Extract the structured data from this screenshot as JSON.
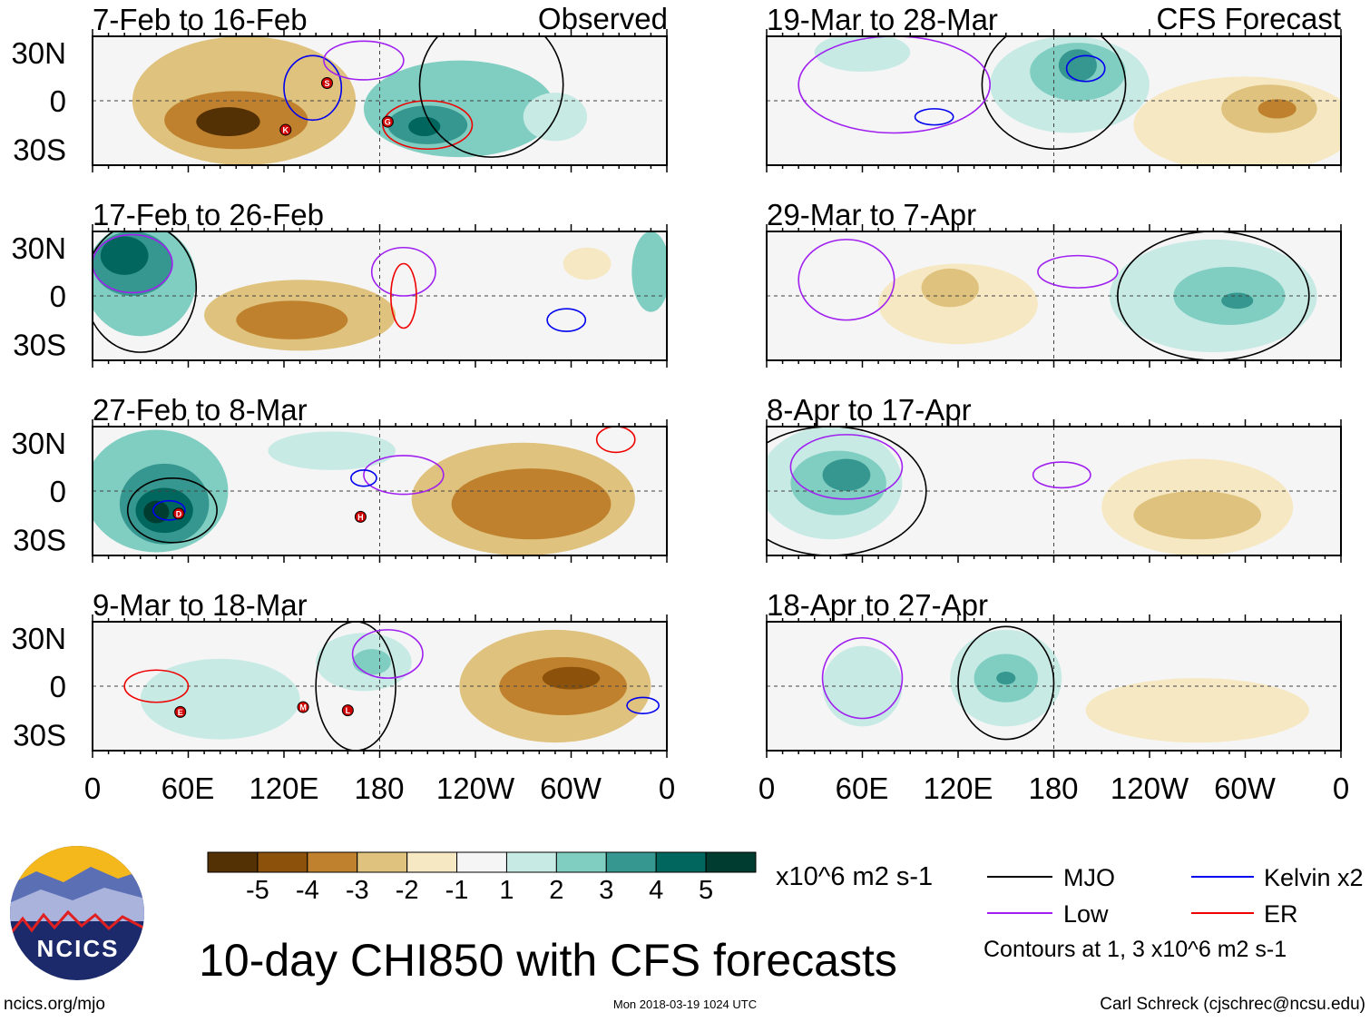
{
  "header": {
    "observed_label": "Observed",
    "forecast_label": "CFS Forecast"
  },
  "lat_labels": [
    "30N",
    "0",
    "30S"
  ],
  "lon_labels": [
    "0",
    "60E",
    "120E",
    "180",
    "120W",
    "60W",
    "0"
  ],
  "title": "10-day CHI850 with CFS forecasts",
  "units": "x10^6 m2 s-1",
  "colorbar": {
    "labels": [
      "-5",
      "-4",
      "-3",
      "-2",
      "-1",
      "1",
      "2",
      "3",
      "4",
      "5"
    ],
    "colors": [
      "#543005",
      "#8c510a",
      "#bf812d",
      "#dfc27d",
      "#f6e8c3",
      "#f5f5f5",
      "#c7eae5",
      "#80cdc1",
      "#35978f",
      "#01665e",
      "#003c30"
    ]
  },
  "legend": {
    "items": [
      {
        "label": "MJO",
        "color": "#000000"
      },
      {
        "label": "Kelvin x2",
        "color": "#0000ee"
      },
      {
        "label": "Low",
        "color": "#a020f0"
      },
      {
        "label": "ER",
        "color": "#ee0000"
      }
    ],
    "note": "Contours at 1, 3 x10^6 m2 s-1"
  },
  "footer": {
    "left": "ncics.org/mjo",
    "center": "Mon 2018-03-19 1024 UTC",
    "right": "Carl Schreck (cjschrec@ncsu.edu)"
  },
  "logo": {
    "text": "NCICS"
  },
  "chart_data": {
    "type": "heatmap",
    "title": "10-day CHI850 with CFS forecasts",
    "lon_range": [
      0,
      360
    ],
    "lat_range": [
      -40,
      40
    ],
    "panels": [
      {
        "title": "7-Feb to 16-Feb",
        "kind": "observed",
        "blobs": [
          {
            "lon": 95,
            "lat": 0,
            "rlon": 70,
            "rlat": 40,
            "v": -2
          },
          {
            "lon": 90,
            "lat": -12,
            "rlon": 45,
            "rlat": 18,
            "v": -3
          },
          {
            "lon": 85,
            "lat": -13,
            "rlon": 20,
            "rlat": 9,
            "v": -5
          },
          {
            "lon": 230,
            "lat": -5,
            "rlon": 60,
            "rlat": 30,
            "v": 2
          },
          {
            "lon": 210,
            "lat": -15,
            "rlon": 25,
            "rlat": 12,
            "v": 3
          },
          {
            "lon": 208,
            "lat": -16,
            "rlon": 10,
            "rlat": 6,
            "v": 4
          },
          {
            "lon": 290,
            "lat": -10,
            "rlon": 20,
            "rlat": 15,
            "v": 1
          }
        ],
        "contours": [
          {
            "t": "ER",
            "lon": 210,
            "lat": -15,
            "rlon": 28,
            "rlat": 15
          },
          {
            "t": "Kelvin",
            "lon": 138,
            "lat": 8,
            "rlon": 18,
            "rlat": 20
          },
          {
            "t": "Low",
            "lon": 170,
            "lat": 25,
            "rlon": 25,
            "rlat": 12
          },
          {
            "t": "MJO",
            "lon": 250,
            "lat": 10,
            "rlon": 45,
            "rlat": 45
          }
        ],
        "storms": [
          {
            "label": "K",
            "lon": 121,
            "lat": -18
          },
          {
            "label": "S",
            "lon": 147,
            "lat": 11
          },
          {
            "label": "G",
            "lon": 185,
            "lat": -13
          }
        ]
      },
      {
        "title": "17-Feb to 26-Feb",
        "kind": "observed",
        "blobs": [
          {
            "lon": 30,
            "lat": 10,
            "rlon": 35,
            "rlat": 35,
            "v": 2
          },
          {
            "lon": 25,
            "lat": 20,
            "rlon": 25,
            "rlat": 20,
            "v": 3
          },
          {
            "lon": 20,
            "lat": 25,
            "rlon": 15,
            "rlat": 12,
            "v": 4
          },
          {
            "lon": 130,
            "lat": -12,
            "rlon": 60,
            "rlat": 22,
            "v": -2
          },
          {
            "lon": 125,
            "lat": -15,
            "rlon": 35,
            "rlat": 12,
            "v": -3
          },
          {
            "lon": 350,
            "lat": 15,
            "rlon": 12,
            "rlat": 25,
            "v": 2
          },
          {
            "lon": 310,
            "lat": 20,
            "rlon": 15,
            "rlat": 10,
            "v": -1
          }
        ],
        "contours": [
          {
            "t": "MJO",
            "lon": 30,
            "lat": 5,
            "rlon": 35,
            "rlat": 40
          },
          {
            "t": "Low",
            "lon": 25,
            "lat": 20,
            "rlon": 25,
            "rlat": 18
          },
          {
            "t": "Low",
            "lon": 195,
            "lat": 15,
            "rlon": 20,
            "rlat": 15
          },
          {
            "t": "ER",
            "lon": 195,
            "lat": 0,
            "rlon": 8,
            "rlat": 20
          },
          {
            "t": "Kelvin",
            "lon": 297,
            "lat": -15,
            "rlon": 12,
            "rlat": 7
          }
        ],
        "storms": []
      },
      {
        "title": "27-Feb to 8-Mar",
        "kind": "observed",
        "blobs": [
          {
            "lon": 40,
            "lat": 0,
            "rlon": 45,
            "rlat": 38,
            "v": 2
          },
          {
            "lon": 45,
            "lat": -8,
            "rlon": 28,
            "rlat": 25,
            "v": 3
          },
          {
            "lon": 45,
            "lat": -12,
            "rlon": 18,
            "rlat": 14,
            "v": 4
          },
          {
            "lon": 40,
            "lat": -13,
            "rlon": 8,
            "rlat": 7,
            "v": 5
          },
          {
            "lon": 270,
            "lat": -5,
            "rlon": 70,
            "rlat": 35,
            "v": -2
          },
          {
            "lon": 275,
            "lat": -8,
            "rlon": 50,
            "rlat": 22,
            "v": -3
          },
          {
            "lon": 150,
            "lat": 25,
            "rlon": 40,
            "rlat": 12,
            "v": 1
          }
        ],
        "contours": [
          {
            "t": "MJO",
            "lon": 50,
            "lat": -12,
            "rlon": 28,
            "rlat": 20
          },
          {
            "t": "Kelvin",
            "lon": 48,
            "lat": -12,
            "rlon": 10,
            "rlat": 6
          },
          {
            "t": "Low",
            "lon": 195,
            "lat": 10,
            "rlon": 25,
            "rlat": 12
          },
          {
            "t": "Kelvin",
            "lon": 170,
            "lat": 8,
            "rlon": 8,
            "rlat": 5
          },
          {
            "t": "ER",
            "lon": 328,
            "lat": 32,
            "rlon": 12,
            "rlat": 8
          }
        ],
        "storms": [
          {
            "label": "D",
            "lon": 54,
            "lat": -14
          },
          {
            "label": "H",
            "lon": 168,
            "lat": -16
          }
        ]
      },
      {
        "title": "9-Mar to 18-Mar",
        "kind": "observed",
        "blobs": [
          {
            "lon": 80,
            "lat": -8,
            "rlon": 50,
            "rlat": 25,
            "v": 1
          },
          {
            "lon": 170,
            "lat": 15,
            "rlon": 30,
            "rlat": 18,
            "v": 1
          },
          {
            "lon": 175,
            "lat": 15,
            "rlon": 12,
            "rlat": 8,
            "v": 2
          },
          {
            "lon": 290,
            "lat": 0,
            "rlon": 60,
            "rlat": 35,
            "v": -2
          },
          {
            "lon": 295,
            "lat": 0,
            "rlon": 40,
            "rlat": 18,
            "v": -3
          },
          {
            "lon": 300,
            "lat": 5,
            "rlon": 18,
            "rlat": 7,
            "v": -4
          }
        ],
        "contours": [
          {
            "t": "MJO",
            "lon": 165,
            "lat": 0,
            "rlon": 25,
            "rlat": 40
          },
          {
            "t": "Low",
            "lon": 185,
            "lat": 20,
            "rlon": 22,
            "rlat": 15
          },
          {
            "t": "ER",
            "lon": 40,
            "lat": 0,
            "rlon": 20,
            "rlat": 10
          },
          {
            "t": "Kelvin",
            "lon": 345,
            "lat": -12,
            "rlon": 10,
            "rlat": 5
          }
        ],
        "storms": [
          {
            "label": "E",
            "lon": 55,
            "lat": -16
          },
          {
            "label": "M",
            "lon": 132,
            "lat": -13
          },
          {
            "label": "L",
            "lon": 160,
            "lat": -15
          }
        ]
      },
      {
        "title": "19-Mar to 28-Mar",
        "kind": "forecast",
        "blobs": [
          {
            "lon": 190,
            "lat": 10,
            "rlon": 50,
            "rlat": 30,
            "v": 1
          },
          {
            "lon": 195,
            "lat": 18,
            "rlon": 30,
            "rlat": 18,
            "v": 2
          },
          {
            "lon": 195,
            "lat": 22,
            "rlon": 12,
            "rlat": 10,
            "v": 3
          },
          {
            "lon": 300,
            "lat": -15,
            "rlon": 70,
            "rlat": 30,
            "v": -1
          },
          {
            "lon": 315,
            "lat": -5,
            "rlon": 30,
            "rlat": 15,
            "v": -2
          },
          {
            "lon": 320,
            "lat": -5,
            "rlon": 12,
            "rlat": 6,
            "v": -3
          },
          {
            "lon": 60,
            "lat": 30,
            "rlon": 30,
            "rlat": 12,
            "v": 1
          }
        ],
        "contours": [
          {
            "t": "MJO",
            "lon": 180,
            "lat": 10,
            "rlon": 45,
            "rlat": 40
          },
          {
            "t": "Kelvin",
            "lon": 200,
            "lat": 20,
            "rlon": 12,
            "rlat": 8
          },
          {
            "t": "Low",
            "lon": 80,
            "lat": 10,
            "rlon": 60,
            "rlat": 30
          },
          {
            "t": "Kelvin",
            "lon": 105,
            "lat": -10,
            "rlon": 12,
            "rlat": 5
          }
        ],
        "storms": []
      },
      {
        "title": "29-Mar to 7-Apr",
        "kind": "forecast",
        "blobs": [
          {
            "lon": 280,
            "lat": 0,
            "rlon": 65,
            "rlat": 35,
            "v": 1
          },
          {
            "lon": 290,
            "lat": 0,
            "rlon": 35,
            "rlat": 18,
            "v": 2
          },
          {
            "lon": 295,
            "lat": -3,
            "rlon": 10,
            "rlat": 5,
            "v": 3
          },
          {
            "lon": 120,
            "lat": -5,
            "rlon": 50,
            "rlat": 25,
            "v": -1
          },
          {
            "lon": 115,
            "lat": 5,
            "rlon": 18,
            "rlat": 12,
            "v": -2
          }
        ],
        "contours": [
          {
            "t": "MJO",
            "lon": 280,
            "lat": 0,
            "rlon": 60,
            "rlat": 40
          },
          {
            "t": "Low",
            "lon": 195,
            "lat": 15,
            "rlon": 25,
            "rlat": 10
          },
          {
            "t": "Low",
            "lon": 50,
            "lat": 10,
            "rlon": 30,
            "rlat": 25
          }
        ],
        "storms": []
      },
      {
        "title": "8-Apr to 17-Apr",
        "kind": "forecast",
        "blobs": [
          {
            "lon": 40,
            "lat": 5,
            "rlon": 45,
            "rlat": 35,
            "v": 1
          },
          {
            "lon": 45,
            "lat": 5,
            "rlon": 30,
            "rlat": 20,
            "v": 2
          },
          {
            "lon": 50,
            "lat": 10,
            "rlon": 15,
            "rlat": 10,
            "v": 3
          },
          {
            "lon": 270,
            "lat": -10,
            "rlon": 60,
            "rlat": 30,
            "v": -1
          },
          {
            "lon": 270,
            "lat": -15,
            "rlon": 40,
            "rlat": 15,
            "v": -2
          }
        ],
        "contours": [
          {
            "t": "MJO",
            "lon": 40,
            "lat": 0,
            "rlon": 60,
            "rlat": 40
          },
          {
            "t": "Low",
            "lon": 50,
            "lat": 15,
            "rlon": 35,
            "rlat": 20
          },
          {
            "t": "Low",
            "lon": 185,
            "lat": 10,
            "rlon": 18,
            "rlat": 8
          }
        ],
        "storms": []
      },
      {
        "title": "18-Apr to 27-Apr",
        "kind": "forecast",
        "blobs": [
          {
            "lon": 150,
            "lat": 5,
            "rlon": 35,
            "rlat": 30,
            "v": 1
          },
          {
            "lon": 150,
            "lat": 5,
            "rlon": 20,
            "rlat": 15,
            "v": 2
          },
          {
            "lon": 150,
            "lat": 5,
            "rlon": 6,
            "rlat": 4,
            "v": 3
          },
          {
            "lon": 60,
            "lat": 0,
            "rlon": 25,
            "rlat": 25,
            "v": 1
          },
          {
            "lon": 270,
            "lat": -15,
            "rlon": 70,
            "rlat": 20,
            "v": -1
          }
        ],
        "contours": [
          {
            "t": "MJO",
            "lon": 150,
            "lat": 2,
            "rlon": 30,
            "rlat": 35
          },
          {
            "t": "Low",
            "lon": 60,
            "lat": 5,
            "rlon": 25,
            "rlat": 25
          }
        ],
        "storms": []
      }
    ]
  }
}
